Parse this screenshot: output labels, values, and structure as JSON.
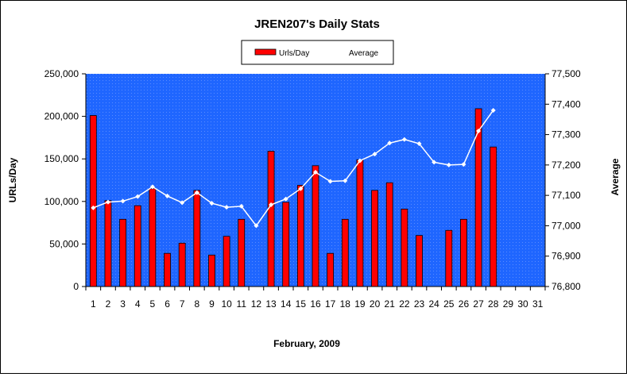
{
  "chart_data": {
    "type": "bar",
    "title": "JREN207's Daily Stats",
    "xlabel": "February, 2009",
    "ylabel": "URLs/Day",
    "y2label": "Average",
    "legend": {
      "placement": "top-center",
      "bar_label": "Urls/Day",
      "line_label": "Average"
    },
    "ylim": [
      0,
      250000
    ],
    "y_ticks": [
      "0",
      "50,000",
      "100,000",
      "150,000",
      "200,000",
      "250,000"
    ],
    "y2lim": [
      76800,
      77500
    ],
    "y2_ticks": [
      "76,800",
      "76,900",
      "77,000",
      "77,100",
      "77,200",
      "77,300",
      "77,400",
      "77,500"
    ],
    "categories": [
      "1",
      "2",
      "3",
      "4",
      "5",
      "6",
      "7",
      "8",
      "9",
      "10",
      "11",
      "12",
      "13",
      "14",
      "15",
      "16",
      "17",
      "18",
      "19",
      "20",
      "21",
      "22",
      "23",
      "24",
      "25",
      "26",
      "27",
      "28",
      "29",
      "30",
      "31"
    ],
    "series": [
      {
        "name": "Urls/Day",
        "kind": "bar",
        "axis": "left",
        "color": "#ff0000",
        "values": [
          201000,
          101000,
          79000,
          95000,
          115000,
          39000,
          51000,
          113000,
          37000,
          59000,
          79000,
          null,
          159000,
          99000,
          119000,
          142000,
          39000,
          79000,
          149000,
          113000,
          122000,
          91000,
          60000,
          null,
          66000,
          79000,
          209000,
          164000,
          null,
          null,
          null
        ]
      },
      {
        "name": "Average",
        "kind": "line",
        "axis": "right",
        "color": "#ffffff",
        "values": [
          77059,
          77078,
          77081,
          77096,
          77128,
          77098,
          77076,
          77109,
          77074,
          77061,
          77064,
          77000,
          77069,
          77088,
          77122,
          77176,
          77146,
          77148,
          77214,
          77236,
          77272,
          77284,
          77270,
          77209,
          77200,
          77202,
          77312,
          77380,
          null,
          null,
          null
        ]
      }
    ],
    "plot_background": "#1f66ff",
    "grid": false
  }
}
